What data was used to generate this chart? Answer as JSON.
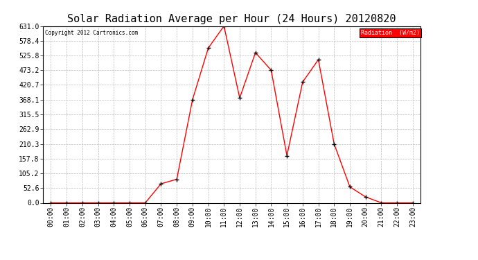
{
  "title": "Solar Radiation Average per Hour (24 Hours) 20120820",
  "copyright": "Copyright 2012 Cartronics.com",
  "legend_label": "Radiation  (W/m2)",
  "hours": [
    "00:00",
    "01:00",
    "02:00",
    "03:00",
    "04:00",
    "05:00",
    "06:00",
    "07:00",
    "08:00",
    "09:00",
    "10:00",
    "11:00",
    "12:00",
    "13:00",
    "14:00",
    "15:00",
    "16:00",
    "17:00",
    "18:00",
    "19:00",
    "20:00",
    "21:00",
    "22:00",
    "23:00"
  ],
  "values": [
    0.0,
    0.0,
    0.0,
    0.0,
    0.0,
    0.0,
    0.0,
    68.0,
    84.0,
    368.1,
    552.0,
    631.0,
    374.0,
    536.0,
    473.2,
    168.0,
    431.0,
    511.0,
    210.3,
    57.0,
    21.0,
    0.0,
    0.0,
    0.0
  ],
  "line_color": "red",
  "marker_color": "black",
  "bg_color": "#ffffff",
  "grid_color": "#bbbbbb",
  "yticks": [
    0.0,
    52.6,
    105.2,
    157.8,
    210.3,
    262.9,
    315.5,
    368.1,
    420.7,
    473.2,
    525.8,
    578.4,
    631.0
  ],
  "ylim": [
    0,
    631.0
  ],
  "title_fontsize": 11,
  "tick_fontsize": 7,
  "legend_bg": "red",
  "legend_text_color": "white"
}
